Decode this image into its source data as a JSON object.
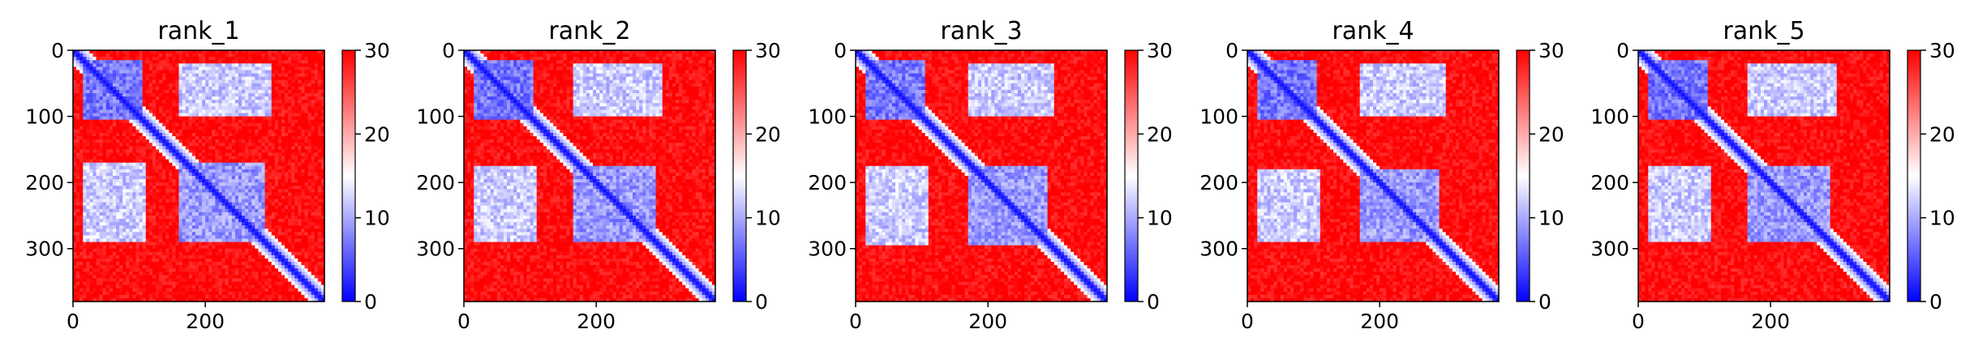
{
  "chart_data": [
    {
      "type": "heatmap",
      "title": "rank_1",
      "xlabel": "",
      "ylabel": "",
      "xlim": [
        0,
        380
      ],
      "ylim": [
        380,
        0
      ],
      "x_ticks": [
        0,
        200
      ],
      "y_ticks": [
        0,
        100,
        200,
        300
      ],
      "colorbar": {
        "range": [
          0,
          30
        ],
        "ticks": [
          0,
          10,
          20,
          30
        ],
        "colormap": "bwr"
      },
      "blocks": [
        {
          "x": [
            15,
            105
          ],
          "y": [
            15,
            105
          ],
          "value": 4
        },
        {
          "x": [
            160,
            290
          ],
          "y": [
            170,
            290
          ],
          "value": 6
        },
        {
          "x": [
            160,
            300
          ],
          "y": [
            20,
            100
          ],
          "value": 9
        },
        {
          "x": [
            15,
            110
          ],
          "y": [
            170,
            290
          ],
          "value": 9
        }
      ],
      "grid": false
    },
    {
      "type": "heatmap",
      "title": "rank_2",
      "xlabel": "",
      "ylabel": "",
      "xlim": [
        0,
        380
      ],
      "ylim": [
        380,
        0
      ],
      "x_ticks": [
        0,
        200
      ],
      "y_ticks": [
        0,
        100,
        200,
        300
      ],
      "colorbar": {
        "range": [
          0,
          30
        ],
        "ticks": [
          0,
          10,
          20,
          30
        ],
        "colormap": "bwr"
      },
      "blocks": [
        {
          "x": [
            15,
            105
          ],
          "y": [
            15,
            105
          ],
          "value": 4
        },
        {
          "x": [
            165,
            290
          ],
          "y": [
            175,
            290
          ],
          "value": 6
        },
        {
          "x": [
            165,
            300
          ],
          "y": [
            20,
            100
          ],
          "value": 9
        },
        {
          "x": [
            15,
            110
          ],
          "y": [
            175,
            290
          ],
          "value": 9
        }
      ],
      "grid": false
    },
    {
      "type": "heatmap",
      "title": "rank_3",
      "xlabel": "",
      "ylabel": "",
      "xlim": [
        0,
        380
      ],
      "ylim": [
        380,
        0
      ],
      "x_ticks": [
        0,
        200
      ],
      "y_ticks": [
        0,
        100,
        200,
        300
      ],
      "colorbar": {
        "range": [
          0,
          30
        ],
        "ticks": [
          0,
          10,
          20,
          30
        ],
        "colormap": "bwr"
      },
      "blocks": [
        {
          "x": [
            15,
            105
          ],
          "y": [
            15,
            105
          ],
          "value": 4
        },
        {
          "x": [
            170,
            290
          ],
          "y": [
            175,
            295
          ],
          "value": 6
        },
        {
          "x": [
            170,
            300
          ],
          "y": [
            20,
            100
          ],
          "value": 9
        },
        {
          "x": [
            15,
            110
          ],
          "y": [
            175,
            295
          ],
          "value": 9
        }
      ],
      "grid": false
    },
    {
      "type": "heatmap",
      "title": "rank_4",
      "xlabel": "",
      "ylabel": "",
      "xlim": [
        0,
        380
      ],
      "ylim": [
        380,
        0
      ],
      "x_ticks": [
        0,
        200
      ],
      "y_ticks": [
        0,
        100,
        200,
        300
      ],
      "colorbar": {
        "range": [
          0,
          30
        ],
        "ticks": [
          0,
          10,
          20,
          30
        ],
        "colormap": "bwr"
      },
      "blocks": [
        {
          "x": [
            15,
            105
          ],
          "y": [
            15,
            105
          ],
          "value": 4
        },
        {
          "x": [
            170,
            290
          ],
          "y": [
            180,
            290
          ],
          "value": 6
        },
        {
          "x": [
            170,
            300
          ],
          "y": [
            20,
            100
          ],
          "value": 9
        },
        {
          "x": [
            15,
            110
          ],
          "y": [
            180,
            290
          ],
          "value": 9
        }
      ],
      "grid": false
    },
    {
      "type": "heatmap",
      "title": "rank_5",
      "xlabel": "",
      "ylabel": "",
      "xlim": [
        0,
        380
      ],
      "ylim": [
        380,
        0
      ],
      "x_ticks": [
        0,
        200
      ],
      "y_ticks": [
        0,
        100,
        200,
        300
      ],
      "colorbar": {
        "range": [
          0,
          30
        ],
        "ticks": [
          0,
          10,
          20,
          30
        ],
        "colormap": "bwr"
      },
      "blocks": [
        {
          "x": [
            15,
            105
          ],
          "y": [
            15,
            105
          ],
          "value": 4
        },
        {
          "x": [
            165,
            290
          ],
          "y": [
            175,
            290
          ],
          "value": 6
        },
        {
          "x": [
            165,
            300
          ],
          "y": [
            20,
            100
          ],
          "value": 9
        },
        {
          "x": [
            15,
            110
          ],
          "y": [
            175,
            290
          ],
          "value": 9
        }
      ],
      "grid": false
    }
  ],
  "colors": {
    "low": "#0000ff",
    "mid": "#ffffff",
    "high": "#ff0000"
  }
}
